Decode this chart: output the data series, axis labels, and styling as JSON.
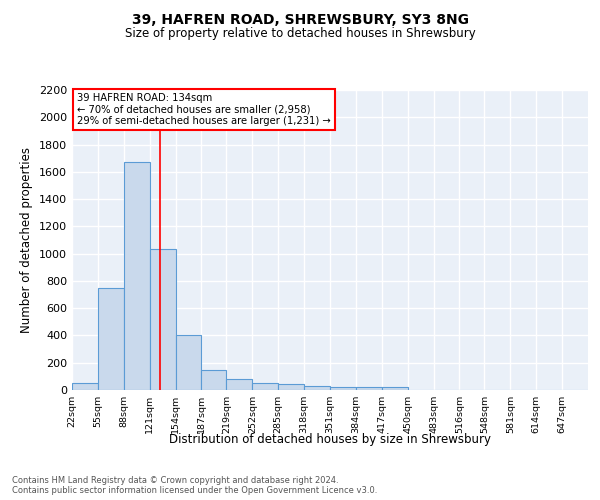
{
  "title": "39, HAFREN ROAD, SHREWSBURY, SY3 8NG",
  "subtitle": "Size of property relative to detached houses in Shrewsbury",
  "xlabel": "Distribution of detached houses by size in Shrewsbury",
  "ylabel": "Number of detached properties",
  "bar_edges": [
    22,
    55,
    88,
    121,
    154,
    187,
    219,
    252,
    285,
    318,
    351,
    384,
    417,
    450,
    483,
    516,
    548,
    581,
    614,
    647,
    680
  ],
  "bar_heights": [
    50,
    748,
    1670,
    1035,
    405,
    150,
    82,
    50,
    42,
    32,
    25,
    20,
    20,
    0,
    0,
    0,
    0,
    0,
    0,
    0
  ],
  "bar_color": "#c9d9ec",
  "bar_edgecolor": "#5b9bd5",
  "annotation_line1": "39 HAFREN ROAD: 134sqm",
  "annotation_line2": "← 70% of detached houses are smaller (2,958)",
  "annotation_line3": "29% of semi-detached houses are larger (1,231) →",
  "red_line_x": 134,
  "ylim": [
    0,
    2200
  ],
  "yticks": [
    0,
    200,
    400,
    600,
    800,
    1000,
    1200,
    1400,
    1600,
    1800,
    2000,
    2200
  ],
  "bg_color": "#eaf0f8",
  "grid_color": "#ffffff",
  "footer_line1": "Contains HM Land Registry data © Crown copyright and database right 2024.",
  "footer_line2": "Contains public sector information licensed under the Open Government Licence v3.0."
}
